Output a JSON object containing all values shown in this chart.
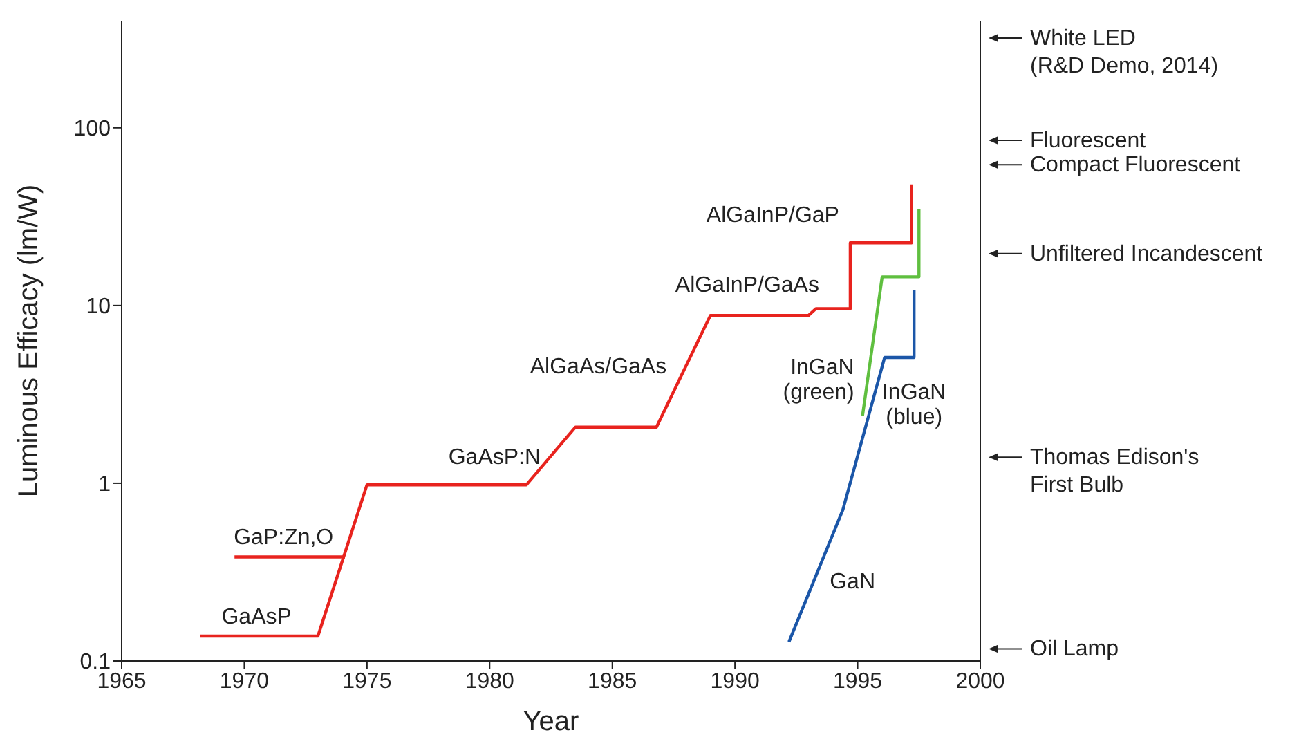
{
  "chart_data": {
    "type": "line",
    "xlabel": "Year",
    "ylabel": "Luminous Efficacy (lm/W)",
    "xlim": [
      1965,
      2000
    ],
    "xticks": [
      1965,
      1970,
      1975,
      1980,
      1985,
      1990,
      1995,
      2000
    ],
    "ylim": [
      0.1,
      400
    ],
    "yticks": [
      0.1,
      1,
      10,
      100
    ],
    "log": true,
    "grid": false,
    "marker": "none",
    "line_style": "solid",
    "series": [
      {
        "color": "#e8231e",
        "x": [
          1968.2,
          1973,
          1975,
          1981.5,
          1983.5,
          1986.8,
          1989,
          1993,
          1993.3,
          1994.7,
          1994.7,
          1997.2,
          1997.2
        ],
        "values": [
          0.138,
          0.138,
          0.98,
          0.98,
          2.07,
          2.07,
          8.8,
          8.8,
          9.6,
          9.6,
          22.5,
          22.5,
          48
        ]
      },
      {
        "color": "#e8231e",
        "x": [
          1969.6,
          1974.1
        ],
        "values": [
          0.385,
          0.385
        ]
      },
      {
        "color": "#5fbf3f",
        "x": [
          1995.2,
          1996,
          1997.5,
          1997.5
        ],
        "values": [
          2.4,
          14.5,
          14.5,
          35
        ]
      },
      {
        "color": "#1b56a8",
        "x": [
          1992.2,
          1994.4,
          1996.1,
          1997.3,
          1997.3
        ],
        "values": [
          0.128,
          0.71,
          5.1,
          5.1,
          12.2
        ]
      }
    ],
    "annotations": [
      {
        "text": "GaAsP",
        "x": 1970.5,
        "y": 0.138
      },
      {
        "text": "GaP:Zn,O",
        "x": 1971.6,
        "y": 0.385
      },
      {
        "text": "GaAsP:N",
        "x": 1980.2,
        "y": 0.98
      },
      {
        "text": "AlGaAs/GaAs",
        "x": 1988,
        "y": 4.55
      },
      {
        "text": "AlGaInP/GaAs",
        "x": 1990.5,
        "y": 8.8
      },
      {
        "text": "AlGaInP/GaP",
        "x": 1994.7,
        "y": 22.5
      },
      {
        "text": "InGaN\n(green)",
        "x": 1995.2,
        "y": 2.4
      },
      {
        "text": "InGaN\n(blue)",
        "x": 1997.3,
        "y": 5.1
      },
      {
        "text": "GaN",
        "x": 1993.3,
        "y": 0.3
      }
    ],
    "ref_lines": [
      {
        "axis": "y",
        "value": 320,
        "label": "White LED\n(R&D Demo, 2014)"
      },
      {
        "axis": "y",
        "value": 85,
        "label": "Fluorescent"
      },
      {
        "axis": "y",
        "value": 62,
        "label": "Compact Fluorescent"
      },
      {
        "axis": "y",
        "value": 19.6,
        "label": "Unfiltered Incandescent"
      },
      {
        "axis": "y",
        "value": 1.4,
        "label": "Thomas Edison's\nFirst Bulb"
      },
      {
        "axis": "y",
        "value": 0.117,
        "label": "Oil Lamp"
      }
    ]
  }
}
